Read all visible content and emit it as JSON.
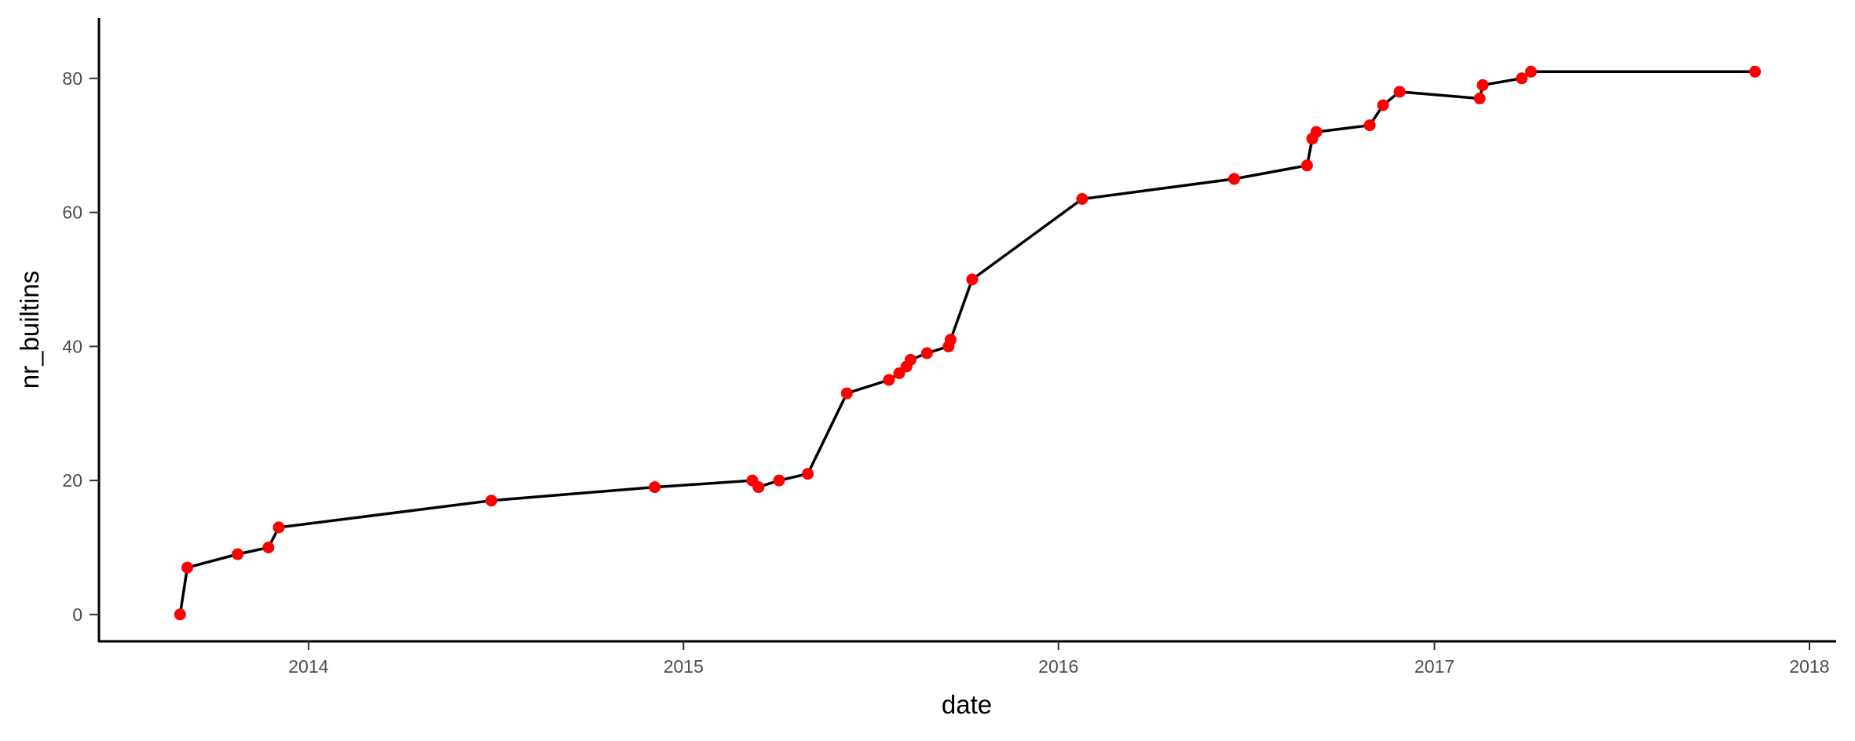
{
  "chart_data": {
    "type": "line",
    "xlabel": "date",
    "ylabel": "nr_builtins",
    "xlim": [
      "2013-06-11",
      "2018-01-27"
    ],
    "ylim": [
      -4,
      89
    ],
    "x_ticks": [
      {
        "date": "2014-01-01",
        "label": "2014"
      },
      {
        "date": "2015-01-01",
        "label": "2015"
      },
      {
        "date": "2016-01-01",
        "label": "2016"
      },
      {
        "date": "2017-01-01",
        "label": "2017"
      },
      {
        "date": "2018-01-01",
        "label": "2018"
      }
    ],
    "y_ticks": [
      0,
      20,
      40,
      60,
      80
    ],
    "grid": false,
    "line_color": "#000000",
    "point_color": "#ff0000",
    "series": [
      {
        "points": [
          {
            "x": "2013-08-29",
            "y": 0
          },
          {
            "x": "2013-09-05",
            "y": 7
          },
          {
            "x": "2013-10-24",
            "y": 9
          },
          {
            "x": "2013-11-23",
            "y": 10
          },
          {
            "x": "2013-12-03",
            "y": 13
          },
          {
            "x": "2014-06-28",
            "y": 17
          },
          {
            "x": "2014-12-04",
            "y": 19
          },
          {
            "x": "2015-03-09",
            "y": 20
          },
          {
            "x": "2015-03-15",
            "y": 19
          },
          {
            "x": "2015-04-04",
            "y": 20
          },
          {
            "x": "2015-05-02",
            "y": 21
          },
          {
            "x": "2015-06-09",
            "y": 33
          },
          {
            "x": "2015-07-20",
            "y": 35
          },
          {
            "x": "2015-07-30",
            "y": 36
          },
          {
            "x": "2015-08-06",
            "y": 37
          },
          {
            "x": "2015-08-10",
            "y": 38
          },
          {
            "x": "2015-08-26",
            "y": 39
          },
          {
            "x": "2015-09-16",
            "y": 40
          },
          {
            "x": "2015-09-18",
            "y": 41
          },
          {
            "x": "2015-10-09",
            "y": 50
          },
          {
            "x": "2016-01-24",
            "y": 62
          },
          {
            "x": "2016-06-20",
            "y": 65
          },
          {
            "x": "2016-08-30",
            "y": 67
          },
          {
            "x": "2016-09-04",
            "y": 71
          },
          {
            "x": "2016-09-08",
            "y": 72
          },
          {
            "x": "2016-10-30",
            "y": 73
          },
          {
            "x": "2016-11-12",
            "y": 76
          },
          {
            "x": "2016-11-28",
            "y": 78
          },
          {
            "x": "2017-02-14",
            "y": 77
          },
          {
            "x": "2017-02-17",
            "y": 79
          },
          {
            "x": "2017-03-27",
            "y": 80
          },
          {
            "x": "2017-04-05",
            "y": 81
          },
          {
            "x": "2017-11-09",
            "y": 81
          }
        ]
      }
    ]
  }
}
